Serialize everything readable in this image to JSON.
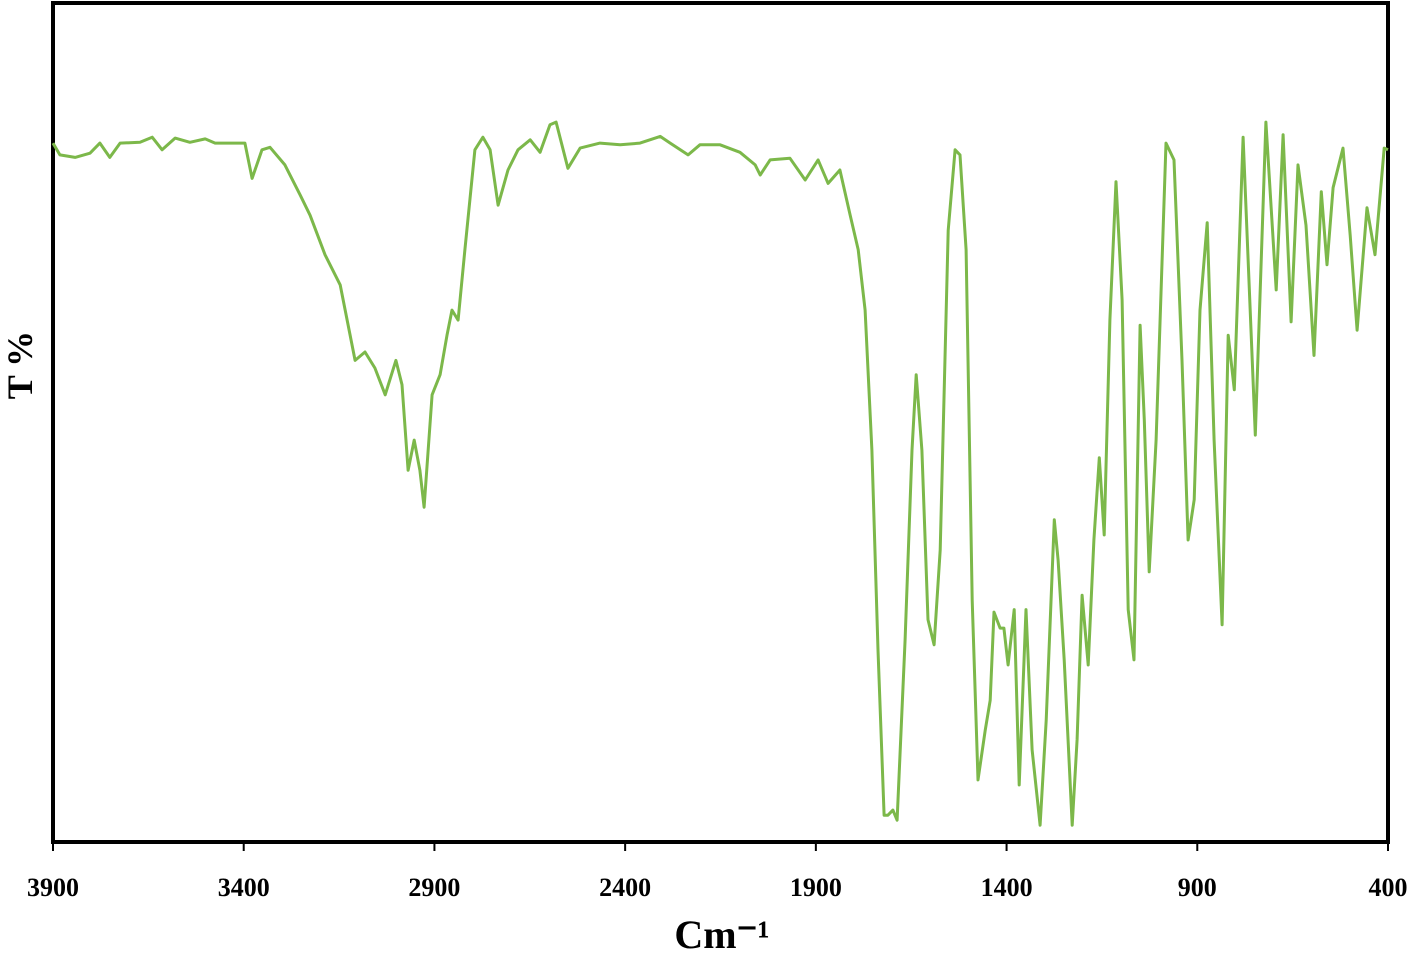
{
  "chart_data": {
    "type": "line",
    "x_label": "Cm⁻¹",
    "y_label": "T %",
    "xlim": [
      3900,
      400
    ],
    "ylim": [
      0,
      100
    ],
    "xticks": [
      3900,
      3400,
      2900,
      2400,
      1900,
      1400,
      900,
      400
    ],
    "x": [
      3900,
      3882,
      3842,
      3803,
      3777,
      3751,
      3724,
      3672,
      3640,
      3614,
      3580,
      3541,
      3501,
      3475,
      3410,
      3397,
      3378,
      3352,
      3331,
      3292,
      3252,
      3226,
      3187,
      3147,
      3108,
      3082,
      3056,
      3029,
      3001,
      2985,
      2969,
      2953,
      2938,
      2927,
      2906,
      2885,
      2867,
      2854,
      2838,
      2820,
      2794,
      2773,
      2754,
      2733,
      2707,
      2681,
      2649,
      2623,
      2597,
      2581,
      2550,
      2518,
      2466,
      2413,
      2361,
      2308,
      2282,
      2235,
      2204,
      2151,
      2099,
      2059,
      2046,
      2020,
      1968,
      1928,
      1894,
      1868,
      1837,
      1810,
      1789,
      1771,
      1753,
      1737,
      1721,
      1711,
      1698,
      1687,
      1666,
      1648,
      1637,
      1622,
      1606,
      1590,
      1574,
      1553,
      1535,
      1522,
      1506,
      1490,
      1475,
      1456,
      1443,
      1433,
      1417,
      1407,
      1396,
      1380,
      1367,
      1349,
      1333,
      1312,
      1296,
      1275,
      1265,
      1249,
      1228,
      1215,
      1202,
      1186,
      1171,
      1157,
      1144,
      1129,
      1113,
      1097,
      1081,
      1066,
      1050,
      1039,
      1026,
      1008,
      982,
      961,
      940,
      924,
      908,
      893,
      874,
      856,
      835,
      819,
      803,
      780,
      748,
      720,
      693,
      675,
      654,
      636,
      615,
      594,
      575,
      560,
      544,
      518,
      499,
      481,
      455,
      434,
      410,
      400
    ],
    "series": [
      {
        "name": "T %",
        "color": "#7cb84a",
        "values": [
          83.3,
          81.9,
          81.6,
          82.1,
          83.3,
          81.6,
          83.3,
          83.4,
          84.0,
          82.5,
          83.9,
          83.4,
          83.8,
          83.3,
          83.3,
          83.3,
          79.1,
          82.5,
          82.8,
          80.7,
          77.1,
          74.7,
          70.0,
          66.4,
          57.4,
          58.4,
          56.5,
          53.3,
          57.4,
          54.5,
          44.3,
          47.9,
          44.3,
          39.9,
          53.3,
          55.7,
          60.4,
          63.4,
          62.2,
          70.6,
          82.5,
          84.0,
          82.5,
          75.9,
          80.1,
          82.5,
          83.7,
          82.2,
          85.5,
          85.8,
          80.3,
          82.7,
          83.3,
          83.1,
          83.3,
          84.1,
          83.3,
          81.9,
          83.1,
          83.1,
          82.2,
          80.7,
          79.5,
          81.3,
          81.5,
          78.9,
          81.3,
          78.5,
          80.1,
          74.7,
          70.6,
          63.4,
          46.7,
          22.9,
          3.2,
          3.2,
          3.8,
          2.6,
          24.1,
          46.7,
          55.7,
          46.7,
          26.5,
          23.5,
          34.8,
          72.9,
          82.5,
          81.9,
          70.6,
          28.8,
          7.4,
          13.3,
          16.9,
          27.4,
          25.5,
          25.5,
          21.1,
          27.7,
          6.8,
          27.7,
          11.0,
          2.0,
          14.5,
          38.4,
          33.6,
          21.7,
          2.0,
          12.2,
          29.4,
          21.1,
          36.0,
          45.8,
          36.6,
          62.2,
          78.7,
          64.6,
          27.7,
          21.7,
          61.6,
          50.3,
          32.2,
          47.9,
          83.3,
          81.3,
          57.4,
          36.0,
          40.8,
          63.4,
          73.8,
          47.9,
          25.9,
          60.4,
          53.9,
          84.0,
          48.5,
          85.8,
          65.8,
          84.3,
          62.0,
          80.7,
          73.5,
          58.0,
          77.5,
          68.8,
          78.0,
          82.7,
          72.3,
          61.0,
          75.6,
          70.0,
          82.7,
          82.5
        ]
      }
    ]
  }
}
